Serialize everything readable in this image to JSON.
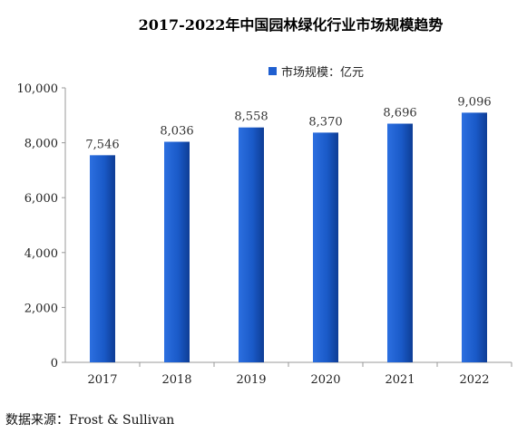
{
  "chart_data": {
    "type": "bar",
    "title": "2017-2022年中国园林绿化行业市场规模趋势",
    "legend": {
      "label": "市场规模：亿元",
      "position": "top-center"
    },
    "categories": [
      "2017",
      "2018",
      "2019",
      "2020",
      "2021",
      "2022"
    ],
    "series": [
      {
        "name": "市场规模：亿元",
        "values": [
          7546,
          8036,
          8558,
          8370,
          8696,
          9096
        ],
        "labels": [
          "7,546",
          "8,036",
          "8,558",
          "8,370",
          "8,696",
          "9,096"
        ]
      }
    ],
    "yticks": [
      "0",
      "2,000",
      "4,000",
      "6,000",
      "8,000",
      "10,000"
    ],
    "ylim": [
      0,
      10000
    ],
    "grid": false,
    "bar_color": "#1f5fd0",
    "bar_color_dark": "#0f3a8c"
  },
  "source_text": "数据来源：Frost & Sullivan"
}
